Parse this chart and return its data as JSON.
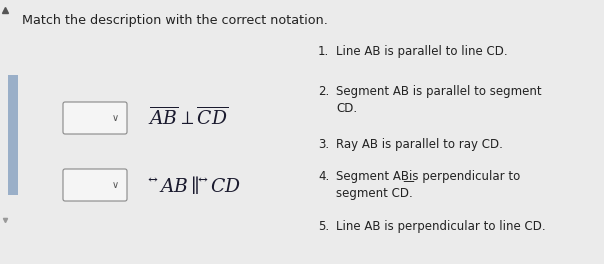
{
  "bg_color": "#ebebeb",
  "title": "Match the description with the correct notation.",
  "title_fontsize": 9.2,
  "title_color": "#222222",
  "items": [
    {
      "num": "1.",
      "text": "Line AB is parallel to line CD.",
      "wrap2": false
    },
    {
      "num": "2.",
      "text": "Segment AB is parallel to segment\nCD.",
      "wrap2": true
    },
    {
      "num": "3.",
      "text": "Ray AB is parallel to ray CD.",
      "wrap2": false
    },
    {
      "num": "4.",
      "text": "Segment AB͟is perpendicular to\nsegment CD.",
      "wrap2": true
    },
    {
      "num": "5.",
      "text": "Line AB is perpendicular to line CD.",
      "wrap2": false
    }
  ],
  "text_fontsize": 8.5,
  "formula_fontsize": 13.5,
  "left_bar_color": "#9aafc8",
  "dropdown_color": "#f5f5f5",
  "dropdown_edge": "#888888"
}
